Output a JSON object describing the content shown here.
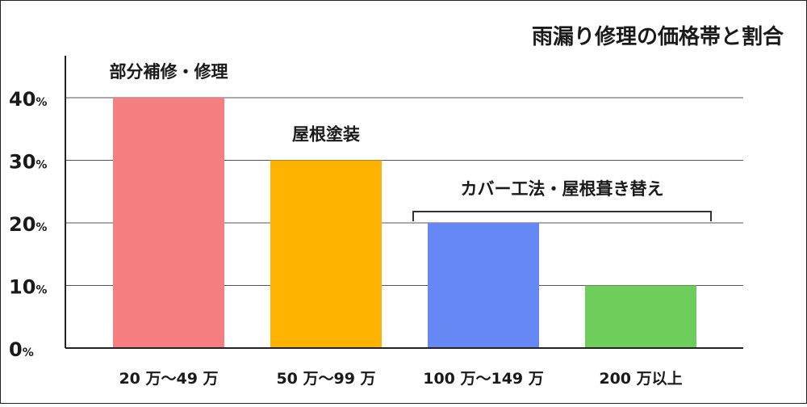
{
  "chart_data": {
    "type": "bar",
    "title": "雨漏り修理の価格帯と割合",
    "categories": [
      "20 万〜49 万",
      "50 万〜99 万",
      "100 万〜149 万",
      "200 万以上"
    ],
    "values": [
      40,
      30,
      20,
      10
    ],
    "colors": [
      "#f57f80",
      "#ffb300",
      "#6688f5",
      "#6dce5c"
    ],
    "y_ticks": [
      {
        "value": 0,
        "num": "0",
        "unit": "%"
      },
      {
        "value": 10,
        "num": "10",
        "unit": "%"
      },
      {
        "value": 20,
        "num": "20",
        "unit": "%"
      },
      {
        "value": 30,
        "num": "30",
        "unit": "%"
      },
      {
        "value": 40,
        "num": "40",
        "unit": "%"
      }
    ],
    "ylim": [
      0,
      40
    ],
    "grid": true,
    "annotations": [
      {
        "text": "部分補修・修理",
        "bar_indices": [
          0
        ]
      },
      {
        "text": "屋根塗装",
        "bar_indices": [
          1
        ]
      },
      {
        "text": "カバー工法・屋根葺き替え",
        "bar_indices": [
          2,
          3
        ]
      }
    ]
  }
}
